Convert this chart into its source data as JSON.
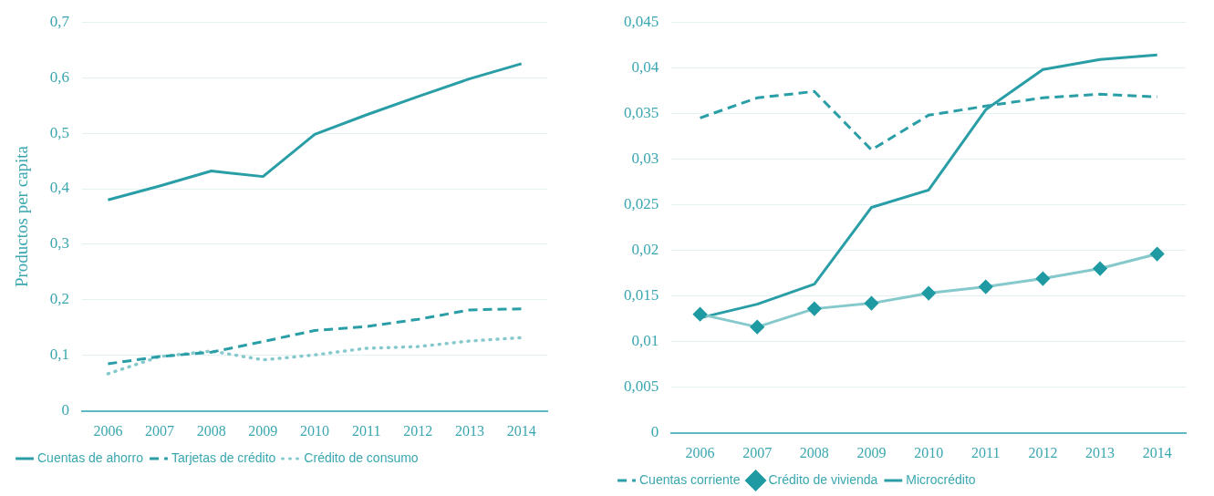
{
  "chart_data": [
    {
      "type": "line",
      "ylabel": "Productos per capita",
      "categories": [
        "2006",
        "2007",
        "2008",
        "2009",
        "2010",
        "2011",
        "2012",
        "2013",
        "2014"
      ],
      "series": [
        {
          "name": "Cuentas de ahorro",
          "color": "#2a9ea6",
          "line_style": "solid",
          "values": [
            0.38,
            0.405,
            0.432,
            0.422,
            0.498,
            0.533,
            0.566,
            0.598,
            0.625
          ]
        },
        {
          "name": "Tarjetas de crédito",
          "color": "#2a9ea6",
          "line_style": "dashed",
          "values": [
            0.085,
            0.098,
            0.106,
            0.125,
            0.145,
            0.152,
            0.165,
            0.182,
            0.184
          ]
        },
        {
          "name": "Crédito de consumo",
          "color": "#86c9cc",
          "line_style": "dotted",
          "values": [
            0.067,
            0.098,
            0.108,
            0.092,
            0.101,
            0.113,
            0.116,
            0.126,
            0.132
          ]
        }
      ],
      "ylim": [
        0,
        0.7
      ],
      "yticks": [
        {
          "value": 0,
          "label": "0"
        },
        {
          "value": 0.1,
          "label": "0,1"
        },
        {
          "value": 0.2,
          "label": "0,2"
        },
        {
          "value": 0.3,
          "label": "0,3"
        },
        {
          "value": 0.4,
          "label": "0,4"
        },
        {
          "value": 0.5,
          "label": "0,5"
        },
        {
          "value": 0.6,
          "label": "0,6"
        },
        {
          "value": 0.7,
          "label": "0,7"
        }
      ],
      "grid": "y",
      "legend": "bottom",
      "marker": "none"
    },
    {
      "type": "line",
      "categories": [
        "2006",
        "2007",
        "2008",
        "2009",
        "2010",
        "2011",
        "2012",
        "2013",
        "2014"
      ],
      "series": [
        {
          "name": "Cuentas corriente",
          "color": "#2a9ea6",
          "line_style": "dashed",
          "marker": "none",
          "values": [
            0.0345,
            0.0367,
            0.0374,
            0.031,
            0.0348,
            0.0358,
            0.0367,
            0.0371,
            0.0368
          ]
        },
        {
          "name": "Crédito de vivienda",
          "color": "#86c9cc",
          "line_style": "solid",
          "marker": "diamond",
          "values": [
            0.013,
            0.0116,
            0.0136,
            0.0142,
            0.0153,
            0.016,
            0.0169,
            0.018,
            0.0196
          ]
        },
        {
          "name": "Microcrédito",
          "color": "#2a9ea6",
          "line_style": "solid",
          "marker": "none",
          "values": [
            0.0126,
            0.0141,
            0.0163,
            0.0247,
            0.0266,
            0.0354,
            0.0398,
            0.0409,
            0.0414
          ]
        }
      ],
      "ylim": [
        0,
        0.045
      ],
      "yticks": [
        {
          "value": 0,
          "label": "0"
        },
        {
          "value": 0.005,
          "label": "0,005"
        },
        {
          "value": 0.01,
          "label": "0,01"
        },
        {
          "value": 0.015,
          "label": "0,015"
        },
        {
          "value": 0.02,
          "label": "0,02"
        },
        {
          "value": 0.025,
          "label": "0,025"
        },
        {
          "value": 0.03,
          "label": "0,03"
        },
        {
          "value": 0.035,
          "label": "0,035"
        },
        {
          "value": 0.04,
          "label": "0,04"
        },
        {
          "value": 0.045,
          "label": "0,045"
        }
      ],
      "grid": "y",
      "legend": "bottom"
    }
  ]
}
